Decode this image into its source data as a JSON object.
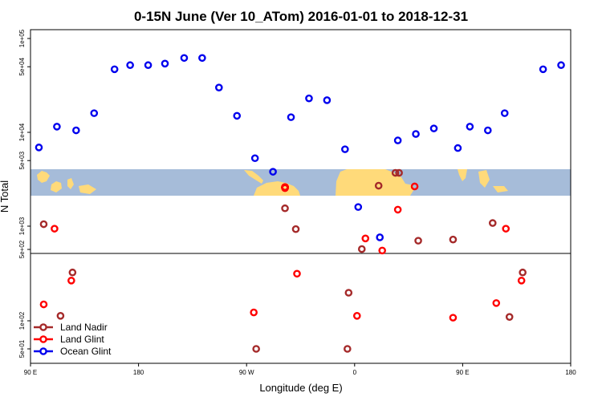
{
  "chart_data": {
    "type": "scatter",
    "title": "0-15N June (Ver 10_ATom)   2016-01-01 to 2018-12-31",
    "xlabel": "Longitude (deg E)",
    "ylabel": "N Total",
    "x_ticks": [
      "90 E",
      "180",
      "90 W",
      "0",
      "90 E",
      "180"
    ],
    "x_tick_lons": [
      90,
      180,
      270,
      360,
      450,
      540
    ],
    "xlim": [
      90,
      540
    ],
    "y_ticks": [
      {
        "label": "1e+05",
        "value": 100000
      },
      {
        "label": "5e+04",
        "value": 50000
      },
      {
        "label": "1e+04",
        "value": 10000
      },
      {
        "label": "5e+03",
        "value": 5000
      },
      {
        "label": "1e+03",
        "value": 1000
      },
      {
        "label": "5e+02",
        "value": 500
      },
      {
        "label": "1e+02",
        "value": 100
      },
      {
        "label": "5e+01",
        "value": 50
      }
    ],
    "map_strip_lat_range": "0-15N",
    "legend": {
      "position": "bottom-left",
      "entries": [
        {
          "name": "Land Nadir",
          "color": "#a52a2a"
        },
        {
          "name": "Land Glint",
          "color": "#ff0000"
        },
        {
          "name": "Ocean Glint",
          "color": "#0000ee"
        }
      ]
    },
    "series": [
      {
        "name": "Ocean Glint",
        "color": "#0000ee",
        "points": [
          {
            "lon": 97,
            "value": 6900
          },
          {
            "lon": 112,
            "value": 11500
          },
          {
            "lon": 128,
            "value": 10500
          },
          {
            "lon": 143,
            "value": 16000
          },
          {
            "lon": 160,
            "value": 47000
          },
          {
            "lon": 173,
            "value": 52000
          },
          {
            "lon": 188,
            "value": 52000
          },
          {
            "lon": 202,
            "value": 54000
          },
          {
            "lon": 218,
            "value": 62000
          },
          {
            "lon": 233,
            "value": 62000
          },
          {
            "lon": 247,
            "value": 30000
          },
          {
            "lon": 262,
            "value": 15000
          },
          {
            "lon": 277,
            "value": 5300
          },
          {
            "lon": 292,
            "value": 3800
          },
          {
            "lon": 307,
            "value": 14500
          },
          {
            "lon": 322,
            "value": 23000
          },
          {
            "lon": 337,
            "value": 22000
          },
          {
            "lon": 352,
            "value": 6600
          },
          {
            "lon": 363,
            "value": 1600
          },
          {
            "lon": 381,
            "value": 760
          },
          {
            "lon": 396,
            "value": 8200
          },
          {
            "lon": 411,
            "value": 9600
          },
          {
            "lon": 426,
            "value": 11000
          },
          {
            "lon": 446,
            "value": 6800
          },
          {
            "lon": 456,
            "value": 11500
          },
          {
            "lon": 471,
            "value": 10500
          },
          {
            "lon": 485,
            "value": 16000
          },
          {
            "lon": 517,
            "value": 47000
          },
          {
            "lon": 532,
            "value": 52000
          }
        ]
      },
      {
        "name": "Land Glint",
        "color": "#ff0000",
        "points": [
          {
            "lon": 101,
            "value": 150
          },
          {
            "lon": 110,
            "value": 940
          },
          {
            "lon": 124,
            "value": 270
          },
          {
            "lon": 276,
            "value": 123
          },
          {
            "lon": 302,
            "value": 2550
          },
          {
            "lon": 302,
            "value": 2550
          },
          {
            "lon": 302,
            "value": 2600
          },
          {
            "lon": 302,
            "value": 2600
          },
          {
            "lon": 302,
            "value": 2600
          },
          {
            "lon": 302,
            "value": 2600
          },
          {
            "lon": 302,
            "value": 2600
          },
          {
            "lon": 302,
            "value": 2600
          },
          {
            "lon": 302,
            "value": 2600
          },
          {
            "lon": 302,
            "value": 2600
          },
          {
            "lon": 302,
            "value": 2600
          },
          {
            "lon": 302,
            "value": 2600
          },
          {
            "lon": 312,
            "value": 320
          },
          {
            "lon": 362,
            "value": 113
          },
          {
            "lon": 369,
            "value": 740
          },
          {
            "lon": 383,
            "value": 550
          },
          {
            "lon": 396,
            "value": 1500
          },
          {
            "lon": 410,
            "value": 2650
          },
          {
            "lon": 442,
            "value": 108
          },
          {
            "lon": 478,
            "value": 155
          },
          {
            "lon": 486,
            "value": 940
          },
          {
            "lon": 499,
            "value": 270
          }
        ]
      },
      {
        "name": "Land Nadir",
        "color": "#a52a2a",
        "points": [
          {
            "lon": 101,
            "value": 1050
          },
          {
            "lon": 115,
            "value": 113
          },
          {
            "lon": 125,
            "value": 330
          },
          {
            "lon": 278,
            "value": 50
          },
          {
            "lon": 302,
            "value": 1550
          },
          {
            "lon": 311,
            "value": 930
          },
          {
            "lon": 354,
            "value": 50
          },
          {
            "lon": 355,
            "value": 200
          },
          {
            "lon": 366,
            "value": 570
          },
          {
            "lon": 380,
            "value": 2700
          },
          {
            "lon": 394,
            "value": 3700
          },
          {
            "lon": 397,
            "value": 3700
          },
          {
            "lon": 413,
            "value": 700
          },
          {
            "lon": 442,
            "value": 720
          },
          {
            "lon": 475,
            "value": 1080
          },
          {
            "lon": 489,
            "value": 110
          },
          {
            "lon": 500,
            "value": 330
          }
        ]
      }
    ]
  }
}
